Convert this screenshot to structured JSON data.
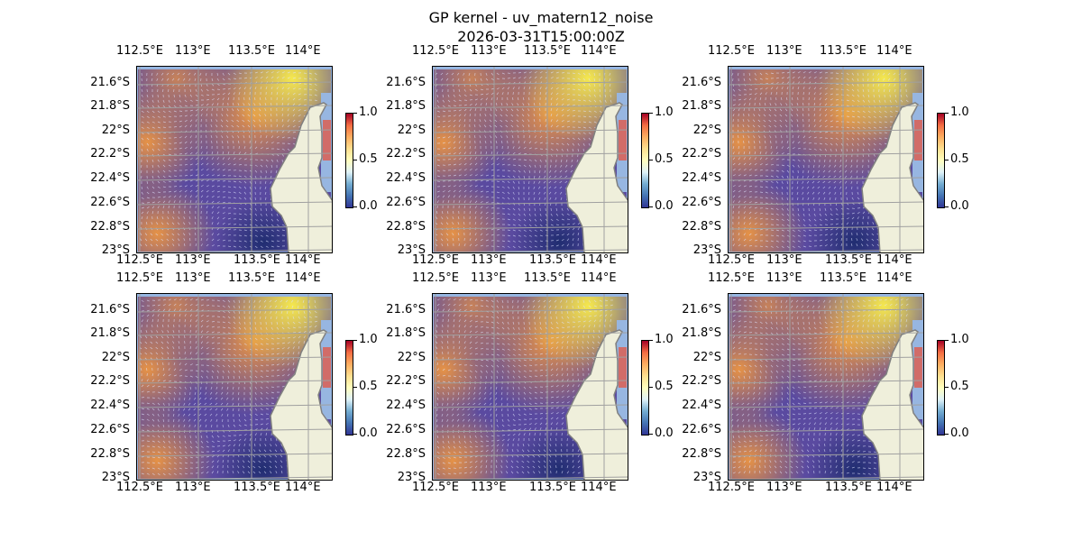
{
  "figure": {
    "title": "GP kernel - uv_matern12_noise",
    "subtitle": "2026-03-31T15:00:00Z"
  },
  "axes": {
    "lon_ticks": [
      "112.5°E",
      "113°E",
      "113.5°E",
      "114°E"
    ],
    "lat_ticks": [
      "21.6°S",
      "21.8°S",
      "22°S",
      "22.2°S",
      "22.4°S",
      "22.6°S",
      "22.8°S",
      "23°S"
    ],
    "colorbar_ticks": [
      "1.0",
      "0.5",
      "0.0"
    ],
    "colormap": "RdYlBu_r",
    "colorbar_range": [
      0.0,
      1.0
    ],
    "grid": true
  },
  "colors": {
    "ocean": "#97b6e1",
    "land": "#efefdb",
    "coast": "#808080",
    "grid": "#a0a0a0",
    "field_low": "#5a4aa0",
    "field_mid": "#f59a3c",
    "field_high": "#f5e84e",
    "field_min": "#1a2a6c"
  },
  "panels": [
    {
      "id": 1
    },
    {
      "id": 2
    },
    {
      "id": 3
    },
    {
      "id": 4
    },
    {
      "id": 5
    },
    {
      "id": 6
    }
  ]
}
